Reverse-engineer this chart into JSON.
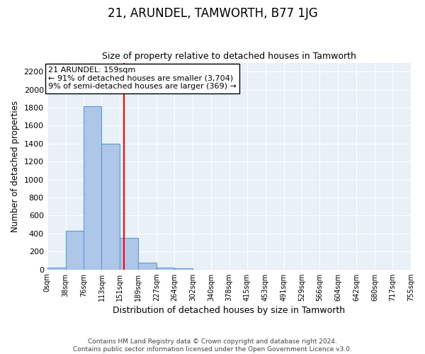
{
  "title": "21, ARUNDEL, TAMWORTH, B77 1JG",
  "subtitle": "Size of property relative to detached houses in Tamworth",
  "xlabel": "Distribution of detached houses by size in Tamworth",
  "ylabel": "Number of detached properties",
  "bin_edges": [
    0,
    38,
    76,
    113,
    151,
    189,
    227,
    264,
    302,
    340,
    378,
    415,
    453,
    491,
    529,
    566,
    604,
    642,
    680,
    717,
    755
  ],
  "bin_labels": [
    "0sqm",
    "38sqm",
    "76sqm",
    "113sqm",
    "151sqm",
    "189sqm",
    "227sqm",
    "264sqm",
    "302sqm",
    "340sqm",
    "378sqm",
    "415sqm",
    "453sqm",
    "491sqm",
    "529sqm",
    "566sqm",
    "604sqm",
    "642sqm",
    "680sqm",
    "717sqm",
    "755sqm"
  ],
  "counts": [
    20,
    430,
    1820,
    1400,
    350,
    80,
    25,
    10,
    0,
    0,
    0,
    0,
    0,
    0,
    0,
    0,
    0,
    0,
    0,
    0
  ],
  "bar_color": "#aec6e8",
  "bar_edge_color": "#5b9bd5",
  "vline_x": 159,
  "vline_color": "red",
  "annotation_title": "21 ARUNDEL: 159sqm",
  "annotation_line1": "← 91% of detached houses are smaller (3,704)",
  "annotation_line2": "9% of semi-detached houses are larger (369) →",
  "ylim": [
    0,
    2300
  ],
  "yticks": [
    0,
    200,
    400,
    600,
    800,
    1000,
    1200,
    1400,
    1600,
    1800,
    2000,
    2200
  ],
  "footnote1": "Contains HM Land Registry data © Crown copyright and database right 2024.",
  "footnote2": "Contains public sector information licensed under the Open Government Licence v3.0.",
  "background_color": "#e8f0f8",
  "plot_bg_color": "#e8f0f8"
}
